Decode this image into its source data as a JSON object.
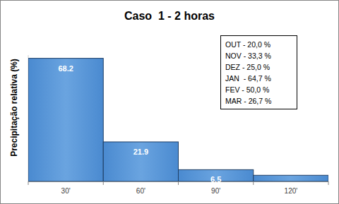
{
  "chart_data": {
    "type": "bar",
    "title": "Caso  1 - 2 horas",
    "y_label": "Precipitação relativa (%)",
    "categories": [
      "30'",
      "60'",
      "90'",
      "120'"
    ],
    "values": [
      68.2,
      21.9,
      6.5,
      3.4
    ],
    "color": "#4a8ad0",
    "ylim": [
      0,
      70
    ],
    "yticks": [],
    "grid": false,
    "data_labels": true,
    "tick_labels": "x",
    "annotations": [
      "OUT - 20,0 %",
      "NOV - 33,3 %",
      "DEZ - 25,0 %",
      "JAN  - 64,7 %",
      "FEV - 50,0 %",
      "MAR - 26,7 %"
    ]
  }
}
